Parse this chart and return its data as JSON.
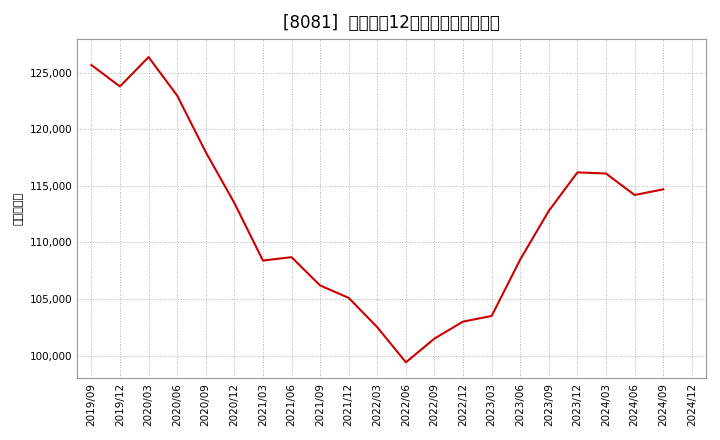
{
  "title": "[8081]  売上高の12か月移動合計の推移",
  "ylabel": "（百万円）",
  "line_color": "#cc0000",
  "background_color": "#ffffff",
  "plot_bg_color": "#ffffff",
  "grid_color": "#aaaaaa",
  "dates": [
    "2019/09",
    "2019/12",
    "2020/03",
    "2020/06",
    "2020/09",
    "2020/12",
    "2021/03",
    "2021/06",
    "2021/09",
    "2021/12",
    "2022/03",
    "2022/06",
    "2022/09",
    "2022/12",
    "2023/03",
    "2023/06",
    "2023/09",
    "2023/12",
    "2024/03",
    "2024/06",
    "2024/09",
    "2024/12"
  ],
  "values": [
    125700,
    123800,
    126400,
    123000,
    118000,
    113500,
    108400,
    108700,
    106200,
    105100,
    102500,
    99400,
    101500,
    103000,
    103500,
    108500,
    112800,
    116200,
    116100,
    114200,
    114700,
    null
  ],
  "yticks": [
    100000,
    105000,
    110000,
    115000,
    120000,
    125000
  ],
  "ylim": [
    98000,
    128000
  ],
  "title_fontsize": 12,
  "tick_fontsize": 7.5,
  "ylabel_fontsize": 8
}
